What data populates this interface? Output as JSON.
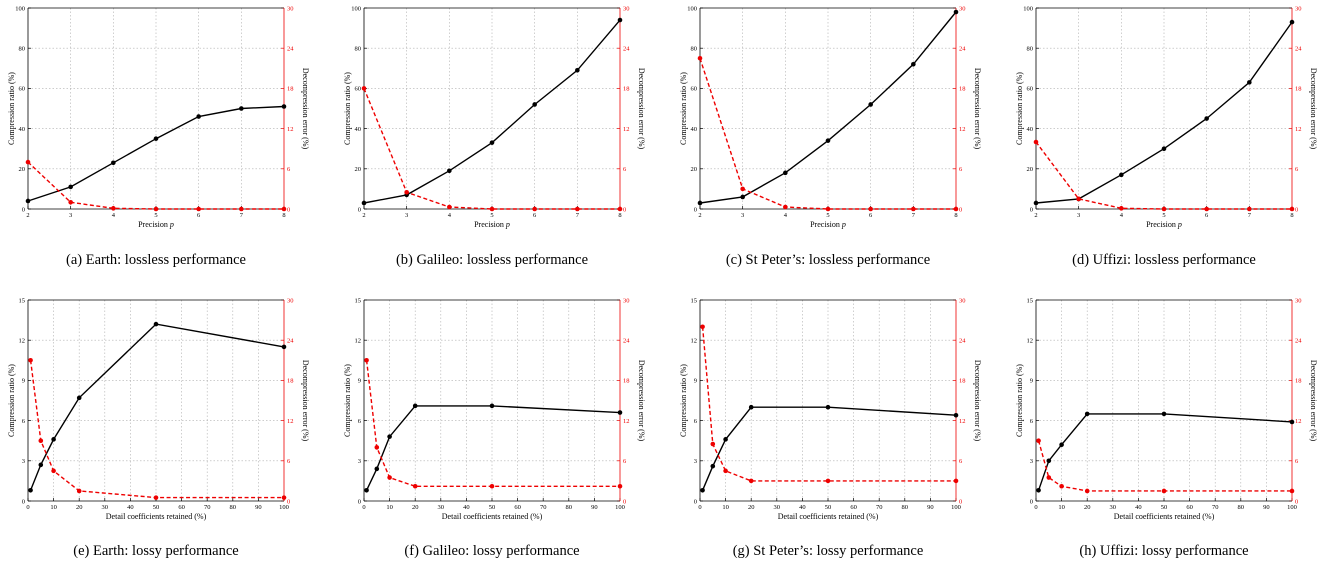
{
  "colors": {
    "ratio": "#000000",
    "error": "#ee0000",
    "grid": "#b0b0b0"
  },
  "chart_data": [
    {
      "type": "line",
      "panel": "a",
      "caption": "(a) Earth: lossless performance",
      "xlabel": "Precision p",
      "ylabel": "Compression ratio (%)",
      "y2label": "Decompression error (%)",
      "x": [
        2,
        3,
        4,
        5,
        6,
        7,
        8
      ],
      "xlim": [
        2,
        8
      ],
      "ylim": [
        0,
        100
      ],
      "y2lim": [
        0,
        30
      ],
      "xticks": [
        "2",
        "3",
        "4",
        "5",
        "6",
        "7",
        "8"
      ],
      "yticks": [
        "0",
        "20",
        "40",
        "60",
        "80",
        "100"
      ],
      "y2ticks": [
        "0",
        "6",
        "12",
        "18",
        "24",
        "30"
      ],
      "series": [
        {
          "axis": "left",
          "style": "solid",
          "values": [
            4,
            11,
            23,
            35,
            46,
            50,
            51
          ]
        },
        {
          "axis": "right",
          "style": "dashed",
          "values": [
            7,
            1,
            0.1,
            0,
            0,
            0,
            0
          ]
        }
      ]
    },
    {
      "type": "line",
      "panel": "b",
      "caption": "(b) Galileo: lossless performance",
      "xlabel": "Precision p",
      "ylabel": "Compression ratio (%)",
      "y2label": "Decompression error (%)",
      "x": [
        2,
        3,
        4,
        5,
        6,
        7,
        8
      ],
      "xlim": [
        2,
        8
      ],
      "ylim": [
        0,
        100
      ],
      "y2lim": [
        0,
        30
      ],
      "xticks": [
        "2",
        "3",
        "4",
        "5",
        "6",
        "7",
        "8"
      ],
      "yticks": [
        "0",
        "20",
        "40",
        "60",
        "80",
        "100"
      ],
      "y2ticks": [
        "0",
        "6",
        "12",
        "18",
        "24",
        "30"
      ],
      "series": [
        {
          "axis": "left",
          "style": "solid",
          "values": [
            3,
            7,
            19,
            33,
            52,
            69,
            94
          ]
        },
        {
          "axis": "right",
          "style": "dashed",
          "values": [
            18,
            2.5,
            0.3,
            0,
            0,
            0,
            0
          ]
        }
      ]
    },
    {
      "type": "line",
      "panel": "c",
      "caption": "(c) St Peter’s: lossless performance",
      "xlabel": "Precision p",
      "ylabel": "Compression ratio (%)",
      "y2label": "Decompression error (%)",
      "x": [
        2,
        3,
        4,
        5,
        6,
        7,
        8
      ],
      "xlim": [
        2,
        8
      ],
      "ylim": [
        0,
        100
      ],
      "y2lim": [
        0,
        30
      ],
      "xticks": [
        "2",
        "3",
        "4",
        "5",
        "6",
        "7",
        "8"
      ],
      "yticks": [
        "0",
        "20",
        "40",
        "60",
        "80",
        "100"
      ],
      "y2ticks": [
        "0",
        "6",
        "12",
        "18",
        "24",
        "30"
      ],
      "series": [
        {
          "axis": "left",
          "style": "solid",
          "values": [
            3,
            6,
            18,
            34,
            52,
            72,
            98
          ]
        },
        {
          "axis": "right",
          "style": "dashed",
          "values": [
            22.5,
            3,
            0.3,
            0,
            0,
            0,
            0
          ]
        }
      ]
    },
    {
      "type": "line",
      "panel": "d",
      "caption": "(d) Uffizi: lossless performance",
      "xlabel": "Precision p",
      "ylabel": "Compression ratio (%)",
      "y2label": "Decompression error (%)",
      "x": [
        2,
        3,
        4,
        5,
        6,
        7,
        8
      ],
      "xlim": [
        2,
        8
      ],
      "ylim": [
        0,
        100
      ],
      "y2lim": [
        0,
        30
      ],
      "xticks": [
        "2",
        "3",
        "4",
        "5",
        "6",
        "7",
        "8"
      ],
      "yticks": [
        "0",
        "20",
        "40",
        "60",
        "80",
        "100"
      ],
      "y2ticks": [
        "0",
        "6",
        "12",
        "18",
        "24",
        "30"
      ],
      "series": [
        {
          "axis": "left",
          "style": "solid",
          "values": [
            3,
            5,
            17,
            30,
            45,
            63,
            93
          ]
        },
        {
          "axis": "right",
          "style": "dashed",
          "values": [
            10,
            1.5,
            0.1,
            0,
            0,
            0,
            0
          ]
        }
      ]
    },
    {
      "type": "line",
      "panel": "e",
      "caption": "(e) Earth: lossy performance",
      "xlabel": "Detail coefficients retained (%)",
      "ylabel": "Compression ratio (%)",
      "y2label": "Decompression error (%)",
      "x": [
        1,
        5,
        10,
        20,
        50,
        100
      ],
      "xlim": [
        0,
        100
      ],
      "ylim": [
        0,
        15
      ],
      "y2lim": [
        0,
        30
      ],
      "xticks": [
        "0",
        "10",
        "20",
        "30",
        "40",
        "50",
        "60",
        "70",
        "80",
        "90",
        "100"
      ],
      "yticks": [
        "0",
        "3",
        "6",
        "9",
        "12",
        "15"
      ],
      "y2ticks": [
        "0",
        "6",
        "12",
        "18",
        "24",
        "30"
      ],
      "series": [
        {
          "axis": "left",
          "style": "solid",
          "values": [
            0.8,
            2.7,
            4.6,
            7.7,
            13.2,
            11.5
          ]
        },
        {
          "axis": "right",
          "style": "dashed",
          "values": [
            21,
            9,
            4.5,
            1.5,
            0.5,
            0.5
          ]
        }
      ]
    },
    {
      "type": "line",
      "panel": "f",
      "caption": "(f) Galileo: lossy performance",
      "xlabel": "Detail coefficients retained (%)",
      "ylabel": "Compression ratio (%)",
      "y2label": "Decompression error (%)",
      "x": [
        1,
        5,
        10,
        20,
        50,
        100
      ],
      "xlim": [
        0,
        100
      ],
      "ylim": [
        0,
        15
      ],
      "y2lim": [
        0,
        30
      ],
      "xticks": [
        "0",
        "10",
        "20",
        "30",
        "40",
        "50",
        "60",
        "70",
        "80",
        "90",
        "100"
      ],
      "yticks": [
        "0",
        "3",
        "6",
        "9",
        "12",
        "15"
      ],
      "y2ticks": [
        "0",
        "6",
        "12",
        "18",
        "24",
        "30"
      ],
      "series": [
        {
          "axis": "left",
          "style": "solid",
          "values": [
            0.8,
            2.4,
            4.8,
            7.1,
            7.1,
            6.6
          ]
        },
        {
          "axis": "right",
          "style": "dashed",
          "values": [
            21,
            8,
            3.5,
            2.2,
            2.2,
            2.2
          ]
        }
      ]
    },
    {
      "type": "line",
      "panel": "g",
      "caption": "(g) St Peter’s: lossy performance",
      "xlabel": "Detail coefficients retained (%)",
      "ylabel": "Compression ratio (%)",
      "y2label": "Decompression error (%)",
      "x": [
        1,
        5,
        10,
        20,
        50,
        100
      ],
      "xlim": [
        0,
        100
      ],
      "ylim": [
        0,
        15
      ],
      "y2lim": [
        0,
        30
      ],
      "xticks": [
        "0",
        "10",
        "20",
        "30",
        "40",
        "50",
        "60",
        "70",
        "80",
        "90",
        "100"
      ],
      "yticks": [
        "0",
        "3",
        "6",
        "9",
        "12",
        "15"
      ],
      "y2ticks": [
        "0",
        "6",
        "12",
        "18",
        "24",
        "30"
      ],
      "series": [
        {
          "axis": "left",
          "style": "solid",
          "values": [
            0.8,
            2.6,
            4.6,
            7.0,
            7.0,
            6.4
          ]
        },
        {
          "axis": "right",
          "style": "dashed",
          "values": [
            26,
            8.5,
            4.5,
            3,
            3,
            3
          ]
        }
      ]
    },
    {
      "type": "line",
      "panel": "h",
      "caption": "(h) Uffizi: lossy performance",
      "xlabel": "Detail coefficients retained (%)",
      "ylabel": "Compression ratio (%)",
      "y2label": "Decompression error (%)",
      "x": [
        1,
        5,
        10,
        20,
        50,
        100
      ],
      "xlim": [
        0,
        100
      ],
      "ylim": [
        0,
        15
      ],
      "y2lim": [
        0,
        30
      ],
      "xticks": [
        "0",
        "10",
        "20",
        "30",
        "40",
        "50",
        "60",
        "70",
        "80",
        "90",
        "100"
      ],
      "yticks": [
        "0",
        "3",
        "6",
        "9",
        "12",
        "15"
      ],
      "y2ticks": [
        "0",
        "6",
        "12",
        "18",
        "24",
        "30"
      ],
      "series": [
        {
          "axis": "left",
          "style": "solid",
          "values": [
            0.8,
            3.0,
            4.2,
            6.5,
            6.5,
            5.9
          ]
        },
        {
          "axis": "right",
          "style": "dashed",
          "values": [
            9,
            3.5,
            2.2,
            1.5,
            1.5,
            1.5
          ]
        }
      ]
    }
  ]
}
